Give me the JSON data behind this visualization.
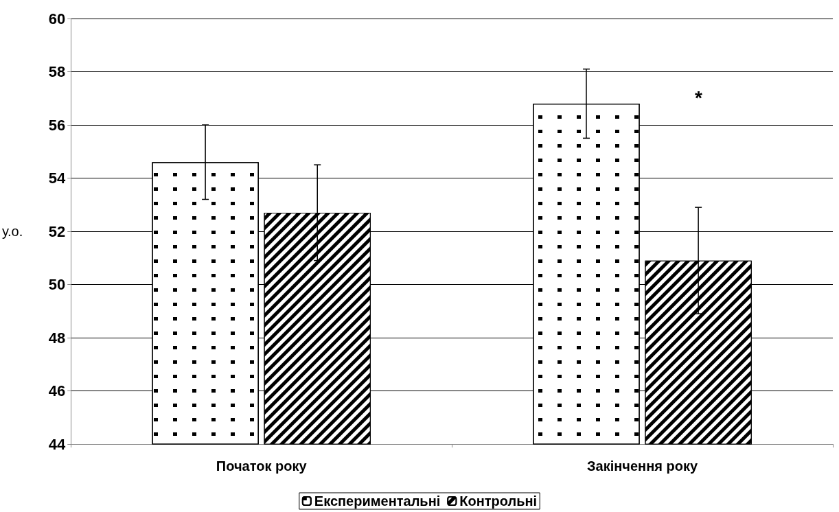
{
  "chart_data": {
    "type": "bar",
    "ylabel": "у.о.",
    "categories": [
      "Початок року",
      "Закінчення року"
    ],
    "series": [
      {
        "name": "Експериментальні",
        "color": "#ffffff",
        "values": [
          54.6,
          56.8
        ],
        "errors": [
          1.4,
          1.3
        ]
      },
      {
        "name": "Контрольні",
        "color": "#000000",
        "values": [
          52.7,
          50.9
        ],
        "errors": [
          1.8,
          2.0
        ]
      }
    ],
    "ylim": [
      44,
      60
    ],
    "yticks": [
      44,
      46,
      48,
      50,
      52,
      54,
      56,
      58,
      60
    ],
    "grid": "y",
    "legend": "bottom",
    "annotations": [
      "*"
    ]
  }
}
